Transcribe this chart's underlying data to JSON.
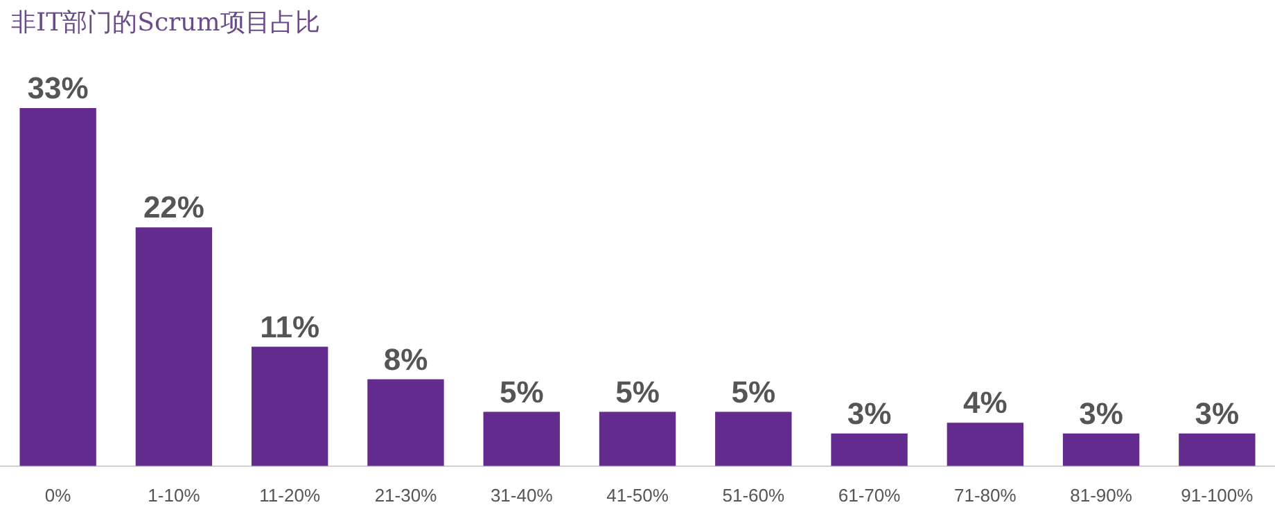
{
  "chart_data": {
    "type": "bar",
    "title": "非IT部门的Scrum项目占比",
    "categories": [
      "0%",
      "1-10%",
      "11-20%",
      "21-30%",
      "31-40%",
      "41-50%",
      "51-60%",
      "61-70%",
      "71-80%",
      "81-90%",
      "91-100%"
    ],
    "values": [
      33,
      22,
      11,
      8,
      5,
      5,
      5,
      3,
      4,
      3,
      3
    ],
    "value_labels": [
      "33%",
      "22%",
      "11%",
      "8%",
      "5%",
      "5%",
      "5%",
      "3%",
      "4%",
      "3%",
      "3%"
    ],
    "color": "#642b8f",
    "grid": false,
    "legend": false
  }
}
